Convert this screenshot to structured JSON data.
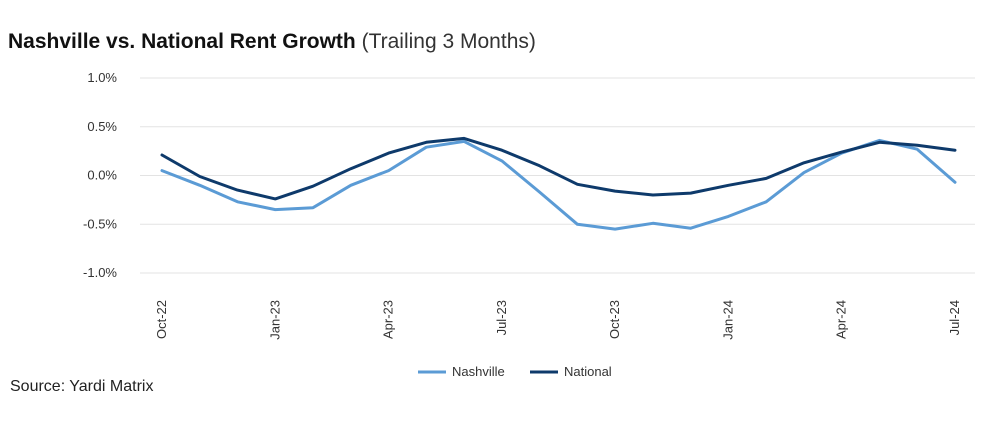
{
  "title": {
    "main": "Nashville vs. National Rent Growth",
    "sub": "(Trailing 3 Months)"
  },
  "source": "Source: Yardi Matrix",
  "chart_data": {
    "type": "line",
    "y_ticks": [
      "1.0%",
      "0.5%",
      "0.0%",
      "-0.5%",
      "-1.0%"
    ],
    "y_tick_values": [
      1.0,
      0.5,
      0.0,
      -0.5,
      -1.0
    ],
    "ylim": [
      -1.0,
      1.0
    ],
    "grid": true,
    "legend": "bottom-center",
    "x": [
      "Oct-22",
      "Nov-22",
      "Dec-22",
      "Jan-23",
      "Feb-23",
      "Mar-23",
      "Apr-23",
      "May-23",
      "Jun-23",
      "Jul-23",
      "Aug-23",
      "Sep-23",
      "Oct-23",
      "Nov-23",
      "Dec-23",
      "Jan-24",
      "Feb-24",
      "Mar-24",
      "Apr-24",
      "May-24",
      "Jun-24",
      "Jul-24"
    ],
    "x_tick_labels": [
      {
        "index": 0,
        "label": "Oct-22"
      },
      {
        "index": 3,
        "label": "Jan-23"
      },
      {
        "index": 6,
        "label": "Apr-23"
      },
      {
        "index": 9,
        "label": "Jul-23"
      },
      {
        "index": 12,
        "label": "Oct-23"
      },
      {
        "index": 15,
        "label": "Jan-24"
      },
      {
        "index": 18,
        "label": "Apr-24"
      },
      {
        "index": 21,
        "label": "Jul-24"
      }
    ],
    "series": [
      {
        "name": "Nashville",
        "color": "#5b9bd5",
        "values": [
          0.05,
          -0.1,
          -0.27,
          -0.35,
          -0.33,
          -0.1,
          0.05,
          0.29,
          0.35,
          0.15,
          -0.17,
          -0.5,
          -0.55,
          -0.49,
          -0.54,
          -0.42,
          -0.27,
          0.03,
          0.23,
          0.36,
          0.27,
          -0.07
        ]
      },
      {
        "name": "National",
        "color": "#0e3a6b",
        "values": [
          0.21,
          -0.01,
          -0.15,
          -0.24,
          -0.11,
          0.07,
          0.23,
          0.34,
          0.38,
          0.26,
          0.1,
          -0.09,
          -0.16,
          -0.2,
          -0.18,
          -0.1,
          -0.03,
          0.13,
          0.24,
          0.34,
          0.31,
          0.26
        ]
      }
    ]
  }
}
